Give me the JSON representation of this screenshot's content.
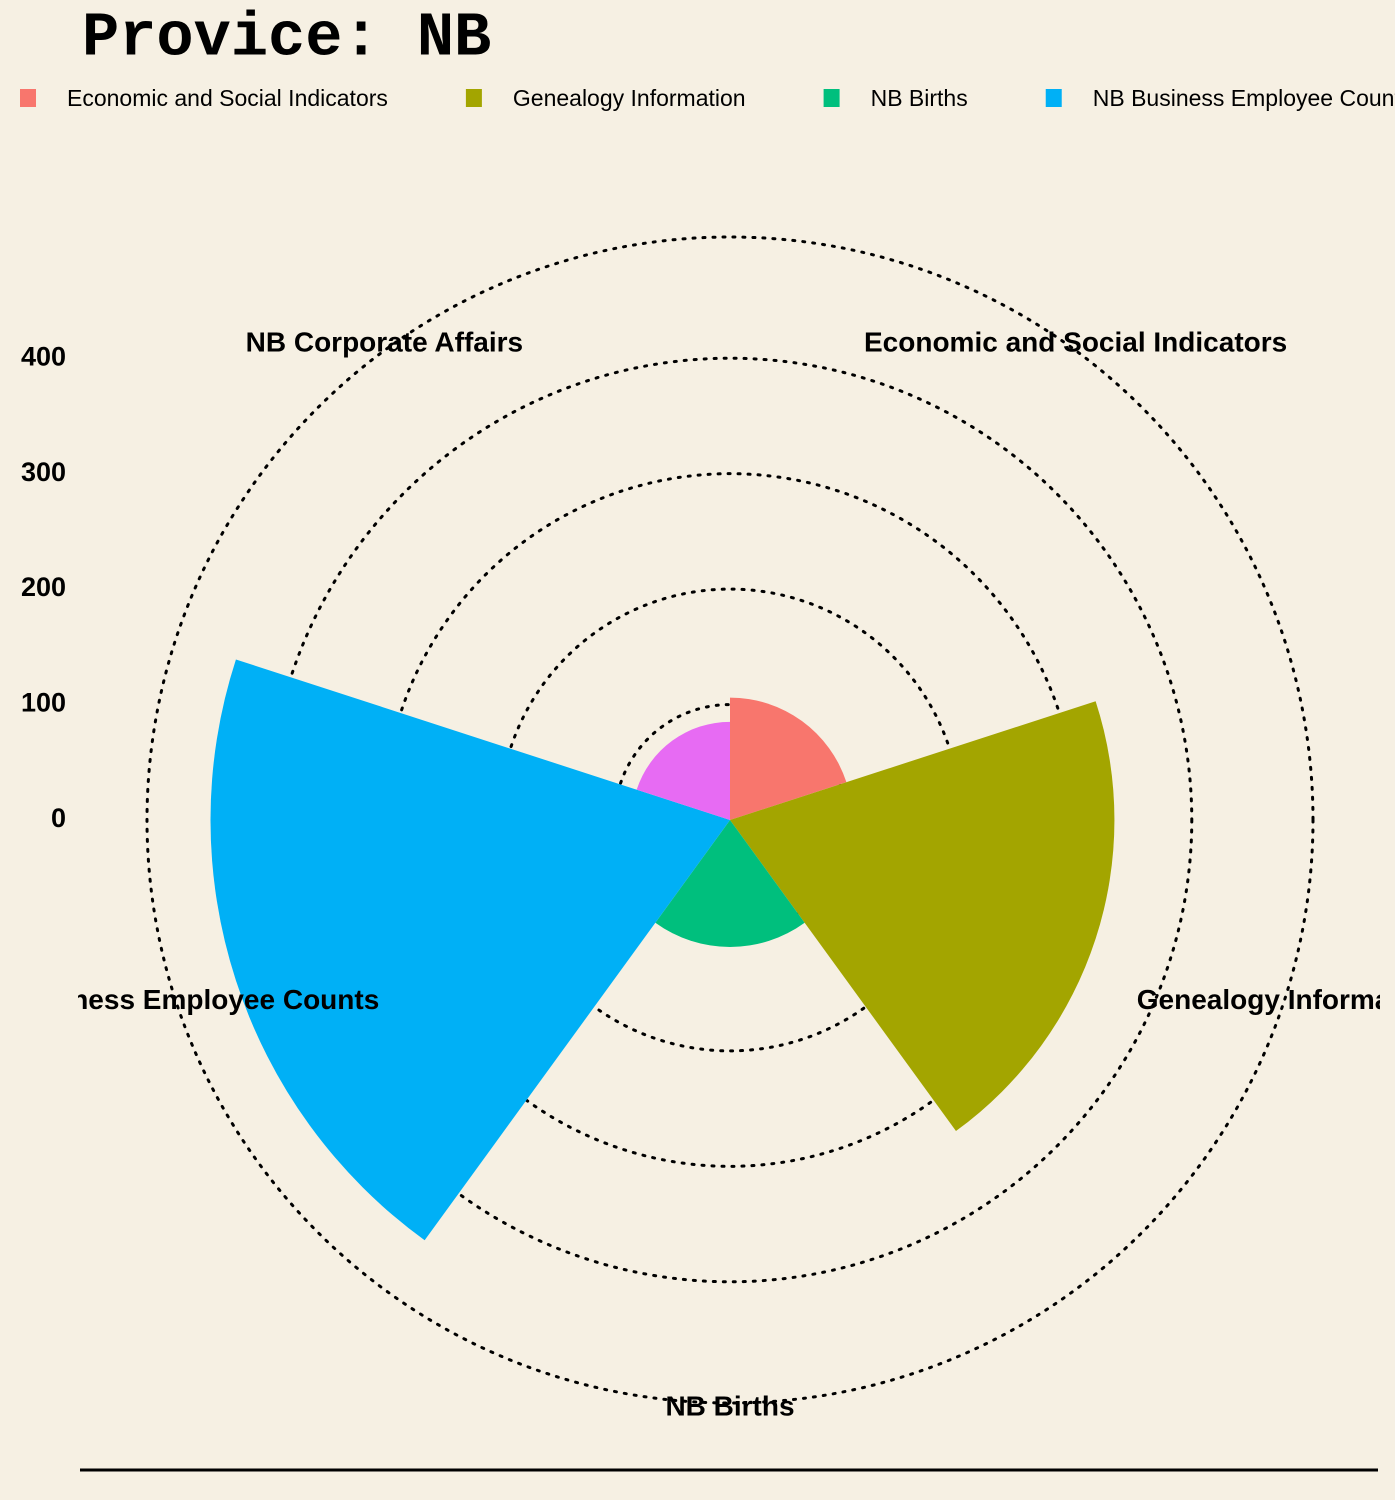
{
  "chart_data": {
    "type": "polar-bar",
    "title": "Provice: NB",
    "categories": [
      "Economic and Social Indicators",
      "Genealogy Information",
      "NB Births",
      "NB Business Employee Counts",
      "NB Corporate Affairs"
    ],
    "values": [
      106,
      333,
      110,
      450,
      85
    ],
    "colors": [
      "#F8766D",
      "#A3A500",
      "#00BF7D",
      "#00B0F6",
      "#E76BF3"
    ],
    "ylim": [
      0,
      505
    ],
    "yticks": [
      0,
      100,
      200,
      300,
      400
    ],
    "grid": true
  }
}
